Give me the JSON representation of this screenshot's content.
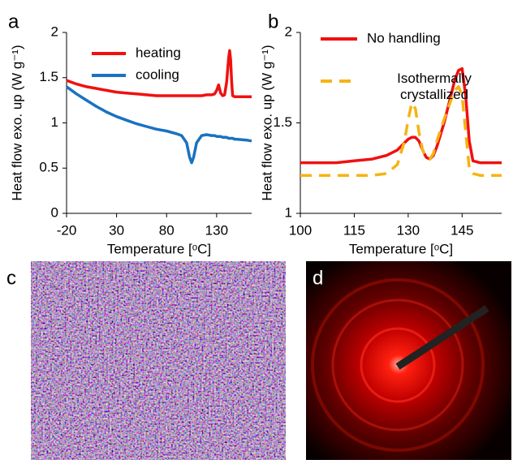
{
  "chart_data": [
    {
      "type": "line",
      "panel_label": "a",
      "x_label": "Temperature [ᵒC]",
      "y_label": "Heat flow exo. up (W g⁻¹)",
      "x": [
        -20,
        -10,
        0,
        10,
        20,
        30,
        40,
        50,
        60,
        70,
        80,
        90,
        95,
        100,
        103,
        105,
        107,
        110,
        115,
        120,
        125,
        128,
        130,
        132,
        134,
        136,
        138,
        140,
        142,
        143,
        144,
        145,
        146,
        148,
        150,
        160,
        165
      ],
      "series": [
        {
          "name": "heating",
          "color": "#f01010",
          "dash": false,
          "values": [
            1.47,
            1.43,
            1.4,
            1.38,
            1.36,
            1.34,
            1.33,
            1.32,
            1.31,
            1.3,
            1.3,
            1.3,
            1.3,
            1.3,
            1.3,
            1.3,
            1.3,
            1.3,
            1.3,
            1.31,
            1.31,
            1.32,
            1.36,
            1.42,
            1.33,
            1.3,
            1.31,
            1.45,
            1.72,
            1.8,
            1.7,
            1.45,
            1.3,
            1.29,
            1.29,
            1.29,
            1.29
          ]
        },
        {
          "name": "cooling",
          "color": "#1a72c0",
          "dash": false,
          "values": [
            1.4,
            1.32,
            1.25,
            1.18,
            1.12,
            1.07,
            1.03,
            0.99,
            0.96,
            0.93,
            0.91,
            0.88,
            0.86,
            0.78,
            0.62,
            0.56,
            0.62,
            0.78,
            0.86,
            0.87,
            0.86,
            0.86,
            0.85,
            0.85,
            0.85,
            0.84,
            0.84,
            0.84,
            0.83,
            0.83,
            0.83,
            0.83,
            0.83,
            0.82,
            0.82,
            0.81,
            0.8
          ]
        }
      ],
      "xlim": [
        -20,
        165
      ],
      "xticks": [
        -20,
        30,
        80,
        130
      ],
      "ylim": [
        0,
        2
      ],
      "yticks": [
        0,
        0.5,
        1,
        1.5,
        2
      ]
    },
    {
      "type": "line",
      "panel_label": "b",
      "x_label": "Temperature [ᵒC]",
      "y_label": "Heat flow exo. up (W g⁻¹)",
      "x": [
        100,
        105,
        110,
        115,
        120,
        124,
        127,
        129,
        130,
        131,
        132,
        133,
        134,
        135,
        136,
        137,
        138,
        140,
        142,
        143,
        144,
        145,
        146,
        147,
        148,
        150,
        155,
        156
      ],
      "series": [
        {
          "name": "No handling",
          "color": "#f01010",
          "dash": false,
          "values": [
            1.28,
            1.28,
            1.28,
            1.29,
            1.3,
            1.32,
            1.35,
            1.39,
            1.41,
            1.42,
            1.42,
            1.4,
            1.35,
            1.31,
            1.3,
            1.32,
            1.37,
            1.5,
            1.66,
            1.74,
            1.79,
            1.8,
            1.65,
            1.4,
            1.29,
            1.28,
            1.28,
            1.28
          ]
        },
        {
          "name": "Isothermally crystallized",
          "color": "#f5b414",
          "dash": true,
          "values": [
            1.21,
            1.21,
            1.21,
            1.21,
            1.21,
            1.22,
            1.27,
            1.4,
            1.52,
            1.61,
            1.58,
            1.45,
            1.35,
            1.31,
            1.3,
            1.33,
            1.4,
            1.52,
            1.63,
            1.68,
            1.7,
            1.65,
            1.45,
            1.25,
            1.22,
            1.21,
            1.21,
            1.21
          ]
        }
      ],
      "xlim": [
        100,
        156
      ],
      "xticks": [
        100,
        115,
        130,
        145
      ],
      "ylim": [
        1,
        2
      ],
      "yticks": [
        1,
        1.5,
        2
      ]
    }
  ],
  "panels": [
    {
      "label": "c"
    },
    {
      "label": "d"
    }
  ]
}
